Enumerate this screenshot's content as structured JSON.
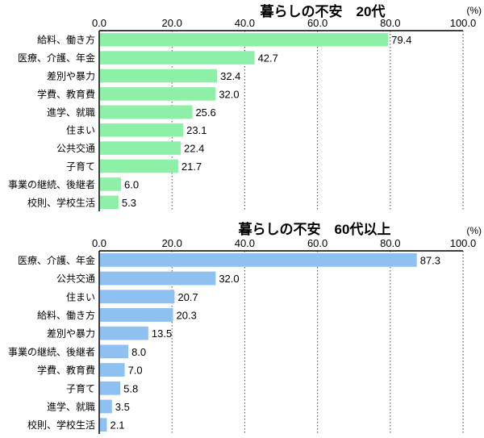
{
  "chart_data": [
    {
      "type": "bar",
      "orientation": "horizontal",
      "title": "暮らしの不安　20代",
      "unit_label": "(%)",
      "xlim": [
        0,
        100
      ],
      "ticks": [
        "0.0",
        "20.0",
        "40.0",
        "60.0",
        "80.0",
        "100.0"
      ],
      "grid": "vertical dotted",
      "color": "#8ef0a8",
      "categories": [
        "給料、働き方",
        "医療、介護、年金",
        "差別や暴力",
        "学費、教育費",
        "進学、就職",
        "住まい",
        "公共交通",
        "子育て",
        "事業の継続、後継者",
        "校則、学校生活"
      ],
      "values": [
        79.4,
        42.7,
        32.4,
        32.0,
        25.6,
        23.1,
        22.4,
        21.7,
        6.0,
        5.3
      ],
      "labels": [
        "79.4",
        "42.7",
        "32.4",
        "32.0",
        "25.6",
        "23.1",
        "22.4",
        "21.7",
        "6.0",
        "5.3"
      ]
    },
    {
      "type": "bar",
      "orientation": "horizontal",
      "title": "暮らしの不安　60代以上",
      "unit_label": "(%)",
      "xlim": [
        0,
        100
      ],
      "ticks": [
        "0.0",
        "20.0",
        "40.0",
        "60.0",
        "80.0",
        "100.0"
      ],
      "grid": "vertical dotted",
      "color": "#8ec0f0",
      "categories": [
        "医療、介護、年金",
        "公共交通",
        "住まい",
        "給料、働き方",
        "差別や暴力",
        "事業の継続、後継者",
        "学費、教育費",
        "子育て",
        "進学、就職",
        "校則、学校生活"
      ],
      "values": [
        87.3,
        32.0,
        20.7,
        20.3,
        13.5,
        8.0,
        7.0,
        5.8,
        3.5,
        2.1
      ],
      "labels": [
        "87.3",
        "32.0",
        "20.7",
        "20.3",
        "13.5",
        "8.0",
        "7.0",
        "5.8",
        "3.5",
        "2.1"
      ]
    }
  ]
}
